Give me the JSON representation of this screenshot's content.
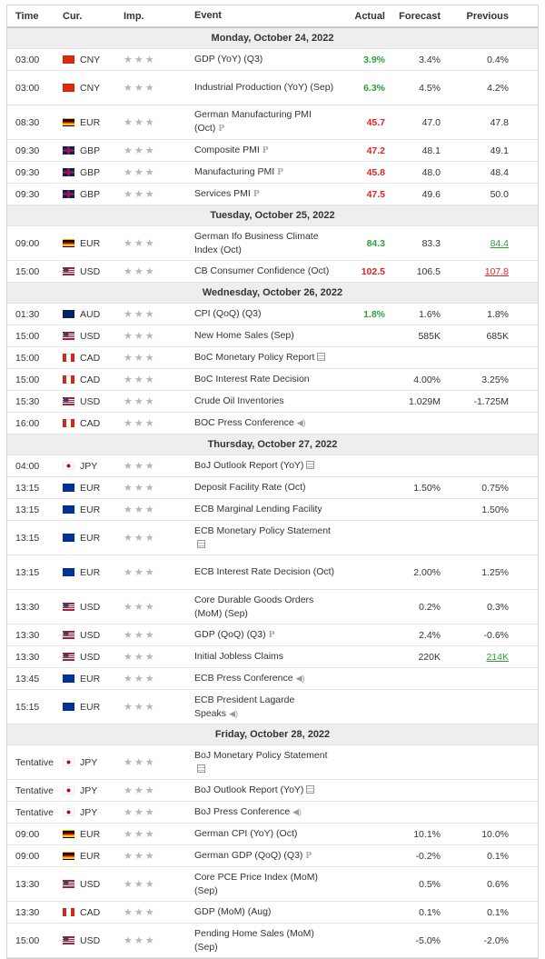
{
  "header": {
    "time": "Time",
    "cur": "Cur.",
    "imp": "Imp.",
    "event": "Event",
    "actual": "Actual",
    "forecast": "Forecast",
    "previous": "Previous"
  },
  "flags": {
    "CNY": "#e6332a",
    "EUR": "#1f4aa0",
    "GBP": "#cc2a3a",
    "USD": "#3a5fb5",
    "AUD": "#1d3d8f",
    "CAD": "#e23b3b",
    "JPY": "#ffffff",
    "DE_EUR": "#2b2b2b"
  },
  "days": [
    {
      "label": "Monday, October 24, 2022",
      "rows": [
        {
          "time": "03:00",
          "flag": "CN",
          "cur": "CNY",
          "event": "GDP (YoY) (Q3)",
          "icon": "",
          "actual": "3.9%",
          "a_cls": "pos",
          "forecast": "3.4%",
          "previous": "0.4%",
          "p_cls": "",
          "h": 24
        },
        {
          "time": "03:00",
          "flag": "CN",
          "cur": "CNY",
          "event": "Industrial Production (YoY) (Sep)",
          "icon": "",
          "actual": "6.3%",
          "a_cls": "pos",
          "forecast": "4.5%",
          "previous": "4.2%",
          "p_cls": "",
          "h": 38
        },
        {
          "time": "08:30",
          "flag": "DE",
          "cur": "EUR",
          "event": "German Manufacturing PMI (Oct)",
          "icon": "p",
          "actual": "45.7",
          "a_cls": "neg",
          "forecast": "47.0",
          "previous": "47.8",
          "p_cls": "",
          "h": 38
        },
        {
          "time": "09:30",
          "flag": "GB",
          "cur": "GBP",
          "event": "Composite PMI",
          "icon": "p",
          "actual": "47.2",
          "a_cls": "neg",
          "forecast": "48.1",
          "previous": "49.1",
          "p_cls": "",
          "h": 24
        },
        {
          "time": "09:30",
          "flag": "GB",
          "cur": "GBP",
          "event": "Manufacturing PMI",
          "icon": "p",
          "actual": "45.8",
          "a_cls": "neg",
          "forecast": "48.0",
          "previous": "48.4",
          "p_cls": "",
          "h": 24
        },
        {
          "time": "09:30",
          "flag": "GB",
          "cur": "GBP",
          "event": "Services PMI",
          "icon": "p",
          "actual": "47.5",
          "a_cls": "neg",
          "forecast": "49.6",
          "previous": "50.0",
          "p_cls": "",
          "h": 24
        }
      ]
    },
    {
      "label": "Tuesday, October 25, 2022",
      "rows": [
        {
          "time": "09:00",
          "flag": "DE",
          "cur": "EUR",
          "event": "German Ifo Business Climate Index (Oct)",
          "icon": "",
          "actual": "84.3",
          "a_cls": "pos",
          "forecast": "83.3",
          "previous": "84.4",
          "p_cls": "u-pos",
          "h": 38
        },
        {
          "time": "15:00",
          "flag": "US",
          "cur": "USD",
          "event": "CB Consumer Confidence (Oct)",
          "icon": "",
          "actual": "102.5",
          "a_cls": "neg",
          "forecast": "106.5",
          "previous": "107.8",
          "p_cls": "u-neg",
          "h": 24
        }
      ]
    },
    {
      "label": "Wednesday, October 26, 2022",
      "rows": [
        {
          "time": "01:30",
          "flag": "AU",
          "cur": "AUD",
          "event": "CPI (QoQ) (Q3)",
          "icon": "",
          "actual": "1.8%",
          "a_cls": "pos",
          "forecast": "1.6%",
          "previous": "1.8%",
          "p_cls": "",
          "h": 24
        },
        {
          "time": "15:00",
          "flag": "US",
          "cur": "USD",
          "event": "New Home Sales (Sep)",
          "icon": "",
          "actual": "",
          "a_cls": "",
          "forecast": "585K",
          "previous": "685K",
          "p_cls": "",
          "h": 24
        },
        {
          "time": "15:00",
          "flag": "CA",
          "cur": "CAD",
          "event": "BoC Monetary Policy Report",
          "icon": "doc",
          "actual": "",
          "a_cls": "",
          "forecast": "",
          "previous": "",
          "p_cls": "",
          "h": 24
        },
        {
          "time": "15:00",
          "flag": "CA",
          "cur": "CAD",
          "event": "BoC Interest Rate Decision",
          "icon": "",
          "actual": "",
          "a_cls": "",
          "forecast": "4.00%",
          "previous": "3.25%",
          "p_cls": "",
          "h": 24
        },
        {
          "time": "15:30",
          "flag": "US",
          "cur": "USD",
          "event": "Crude Oil Inventories",
          "icon": "",
          "actual": "",
          "a_cls": "",
          "forecast": "1.029M",
          "previous": "-1.725M",
          "p_cls": "",
          "h": 24
        },
        {
          "time": "16:00",
          "flag": "CA",
          "cur": "CAD",
          "event": "BOC Press Conference",
          "icon": "snd",
          "actual": "",
          "a_cls": "",
          "forecast": "",
          "previous": "",
          "p_cls": "",
          "h": 24
        }
      ]
    },
    {
      "label": "Thursday, October 27, 2022",
      "rows": [
        {
          "time": "04:00",
          "flag": "JP",
          "cur": "JPY",
          "event": "BoJ Outlook Report (YoY)",
          "icon": "doc",
          "actual": "",
          "a_cls": "",
          "forecast": "",
          "previous": "",
          "p_cls": "",
          "h": 24
        },
        {
          "time": "13:15",
          "flag": "EU",
          "cur": "EUR",
          "event": "Deposit Facility Rate (Oct)",
          "icon": "",
          "actual": "",
          "a_cls": "",
          "forecast": "1.50%",
          "previous": "0.75%",
          "p_cls": "",
          "h": 24
        },
        {
          "time": "13:15",
          "flag": "EU",
          "cur": "EUR",
          "event": "ECB Marginal Lending Facility",
          "icon": "",
          "actual": "",
          "a_cls": "",
          "forecast": "",
          "previous": "1.50%",
          "p_cls": "",
          "h": 24
        },
        {
          "time": "13:15",
          "flag": "EU",
          "cur": "EUR",
          "event": "ECB Monetary Policy Statement",
          "icon": "doc",
          "actual": "",
          "a_cls": "",
          "forecast": "",
          "previous": "",
          "p_cls": "",
          "h": 38
        },
        {
          "time": "13:15",
          "flag": "EU",
          "cur": "EUR",
          "event": "ECB Interest Rate Decision (Oct)",
          "icon": "",
          "actual": "",
          "a_cls": "",
          "forecast": "2.00%",
          "previous": "1.25%",
          "p_cls": "",
          "h": 38
        },
        {
          "time": "13:30",
          "flag": "US",
          "cur": "USD",
          "event": "Core Durable Goods Orders (MoM) (Sep)",
          "icon": "",
          "actual": "",
          "a_cls": "",
          "forecast": "0.2%",
          "previous": "0.3%",
          "p_cls": "",
          "h": 38
        },
        {
          "time": "13:30",
          "flag": "US",
          "cur": "USD",
          "event": "GDP (QoQ) (Q3)",
          "icon": "p",
          "actual": "",
          "a_cls": "",
          "forecast": "2.4%",
          "previous": "-0.6%",
          "p_cls": "",
          "h": 24
        },
        {
          "time": "13:30",
          "flag": "US",
          "cur": "USD",
          "event": "Initial Jobless Claims",
          "icon": "",
          "actual": "",
          "a_cls": "",
          "forecast": "220K",
          "previous": "214K",
          "p_cls": "u-pos",
          "h": 24
        },
        {
          "time": "13:45",
          "flag": "EU",
          "cur": "EUR",
          "event": "ECB Press Conference",
          "icon": "snd",
          "actual": "",
          "a_cls": "",
          "forecast": "",
          "previous": "",
          "p_cls": "",
          "h": 24
        },
        {
          "time": "15:15",
          "flag": "EU",
          "cur": "EUR",
          "event": "ECB President Lagarde Speaks",
          "icon": "snd",
          "actual": "",
          "a_cls": "",
          "forecast": "",
          "previous": "",
          "p_cls": "",
          "h": 38
        }
      ]
    },
    {
      "label": "Friday, October 28, 2022",
      "rows": [
        {
          "time": "Tentative",
          "flag": "JP",
          "cur": "JPY",
          "event": "BoJ Monetary Policy Statement",
          "icon": "doc",
          "actual": "",
          "a_cls": "",
          "forecast": "",
          "previous": "",
          "p_cls": "",
          "h": 38
        },
        {
          "time": "Tentative",
          "flag": "JP",
          "cur": "JPY",
          "event": "BoJ Outlook Report (YoY)",
          "icon": "doc",
          "actual": "",
          "a_cls": "",
          "forecast": "",
          "previous": "",
          "p_cls": "",
          "h": 24
        },
        {
          "time": "Tentative",
          "flag": "JP",
          "cur": "JPY",
          "event": "BoJ Press Conference",
          "icon": "snd",
          "actual": "",
          "a_cls": "",
          "forecast": "",
          "previous": "",
          "p_cls": "",
          "h": 24
        },
        {
          "time": "09:00",
          "flag": "DE",
          "cur": "EUR",
          "event": "German CPI (YoY) (Oct)",
          "icon": "",
          "actual": "",
          "a_cls": "",
          "forecast": "10.1%",
          "previous": "10.0%",
          "p_cls": "",
          "h": 24
        },
        {
          "time": "09:00",
          "flag": "DE",
          "cur": "EUR",
          "event": "German GDP (QoQ) (Q3)",
          "icon": "p",
          "actual": "",
          "a_cls": "",
          "forecast": "-0.2%",
          "previous": "0.1%",
          "p_cls": "",
          "h": 24
        },
        {
          "time": "13:30",
          "flag": "US",
          "cur": "USD",
          "event": "Core PCE Price Index (MoM) (Sep)",
          "icon": "",
          "actual": "",
          "a_cls": "",
          "forecast": "0.5%",
          "previous": "0.6%",
          "p_cls": "",
          "h": 38
        },
        {
          "time": "13:30",
          "flag": "CA",
          "cur": "CAD",
          "event": "GDP (MoM) (Aug)",
          "icon": "",
          "actual": "",
          "a_cls": "",
          "forecast": "0.1%",
          "previous": "0.1%",
          "p_cls": "",
          "h": 24
        },
        {
          "time": "15:00",
          "flag": "US",
          "cur": "USD",
          "event": "Pending Home Sales (MoM) (Sep)",
          "icon": "",
          "actual": "",
          "a_cls": "",
          "forecast": "-5.0%",
          "previous": "-2.0%",
          "p_cls": "",
          "h": 38
        }
      ]
    }
  ]
}
